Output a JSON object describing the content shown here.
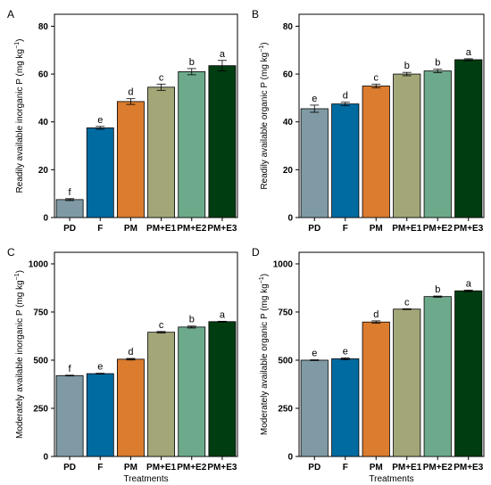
{
  "figure": {
    "colors": [
      "#7f9aa4",
      "#006ba0",
      "#db7c2e",
      "#a3a677",
      "#6daa8b",
      "#003d11"
    ],
    "panels": [
      {
        "panel_label": "A",
        "chart_data": {
          "type": "bar",
          "categories": [
            "PD",
            "F",
            "PM",
            "PM+E1",
            "PM+E2",
            "PM+E3"
          ],
          "values": [
            7.5,
            37.5,
            48.5,
            54.5,
            61,
            63.5
          ],
          "errors": [
            0.4,
            0.6,
            1.2,
            1.3,
            1.3,
            2.2
          ],
          "significance": [
            "f",
            "e",
            "d",
            "c",
            "b",
            "a"
          ],
          "ylabel": "Readily available inorganic P (mg kg",
          "ylabel_sup": "−1",
          "ylabel_end": ")",
          "xlabel": "",
          "ylim": [
            0,
            85
          ],
          "yticks": [
            0,
            20,
            40,
            60,
            80
          ]
        }
      },
      {
        "panel_label": "B",
        "chart_data": {
          "type": "bar",
          "categories": [
            "PD",
            "F",
            "PM",
            "PM+E1",
            "PM+E2",
            "PM+E3"
          ],
          "values": [
            45.5,
            47.5,
            55,
            60,
            61.3,
            66
          ],
          "errors": [
            1.5,
            0.7,
            0.8,
            0.7,
            0.7,
            0.4
          ],
          "significance": [
            "e",
            "d",
            "c",
            "b",
            "b",
            "a"
          ],
          "ylabel": "Readily available organic P (mg kg",
          "ylabel_sup": "−1",
          "ylabel_end": ")",
          "xlabel": "",
          "ylim": [
            0,
            85
          ],
          "yticks": [
            0,
            20,
            40,
            60,
            80
          ]
        }
      },
      {
        "panel_label": "C",
        "chart_data": {
          "type": "bar",
          "categories": [
            "PD",
            "F",
            "PM",
            "PM+E1",
            "PM+E2",
            "PM+E3"
          ],
          "values": [
            420,
            430,
            505,
            645,
            672,
            700
          ],
          "errors": [
            2,
            2,
            4,
            4,
            5,
            2
          ],
          "significance": [
            "f",
            "e",
            "d",
            "c",
            "b",
            "a"
          ],
          "ylabel": "Moderately available inorganic P (mg kg",
          "ylabel_sup": "−1",
          "ylabel_end": ")",
          "xlabel": "Treatments",
          "ylim": [
            0,
            1060
          ],
          "yticks": [
            0,
            250,
            500,
            750,
            1000
          ]
        }
      },
      {
        "panel_label": "D",
        "chart_data": {
          "type": "bar",
          "categories": [
            "PD",
            "F",
            "PM",
            "PM+E1",
            "PM+E2",
            "PM+E3"
          ],
          "values": [
            500,
            507,
            698,
            765,
            830,
            860
          ],
          "errors": [
            2,
            5,
            6,
            2,
            3,
            4
          ],
          "significance": [
            "e",
            "e",
            "d",
            "c",
            "b",
            "a"
          ],
          "ylabel": "Moderately available organic P (mg kg",
          "ylabel_sup": "−1",
          "ylabel_end": ")",
          "xlabel": "Treatments",
          "ylim": [
            0,
            1060
          ],
          "yticks": [
            0,
            250,
            500,
            750,
            1000
          ]
        }
      }
    ]
  }
}
